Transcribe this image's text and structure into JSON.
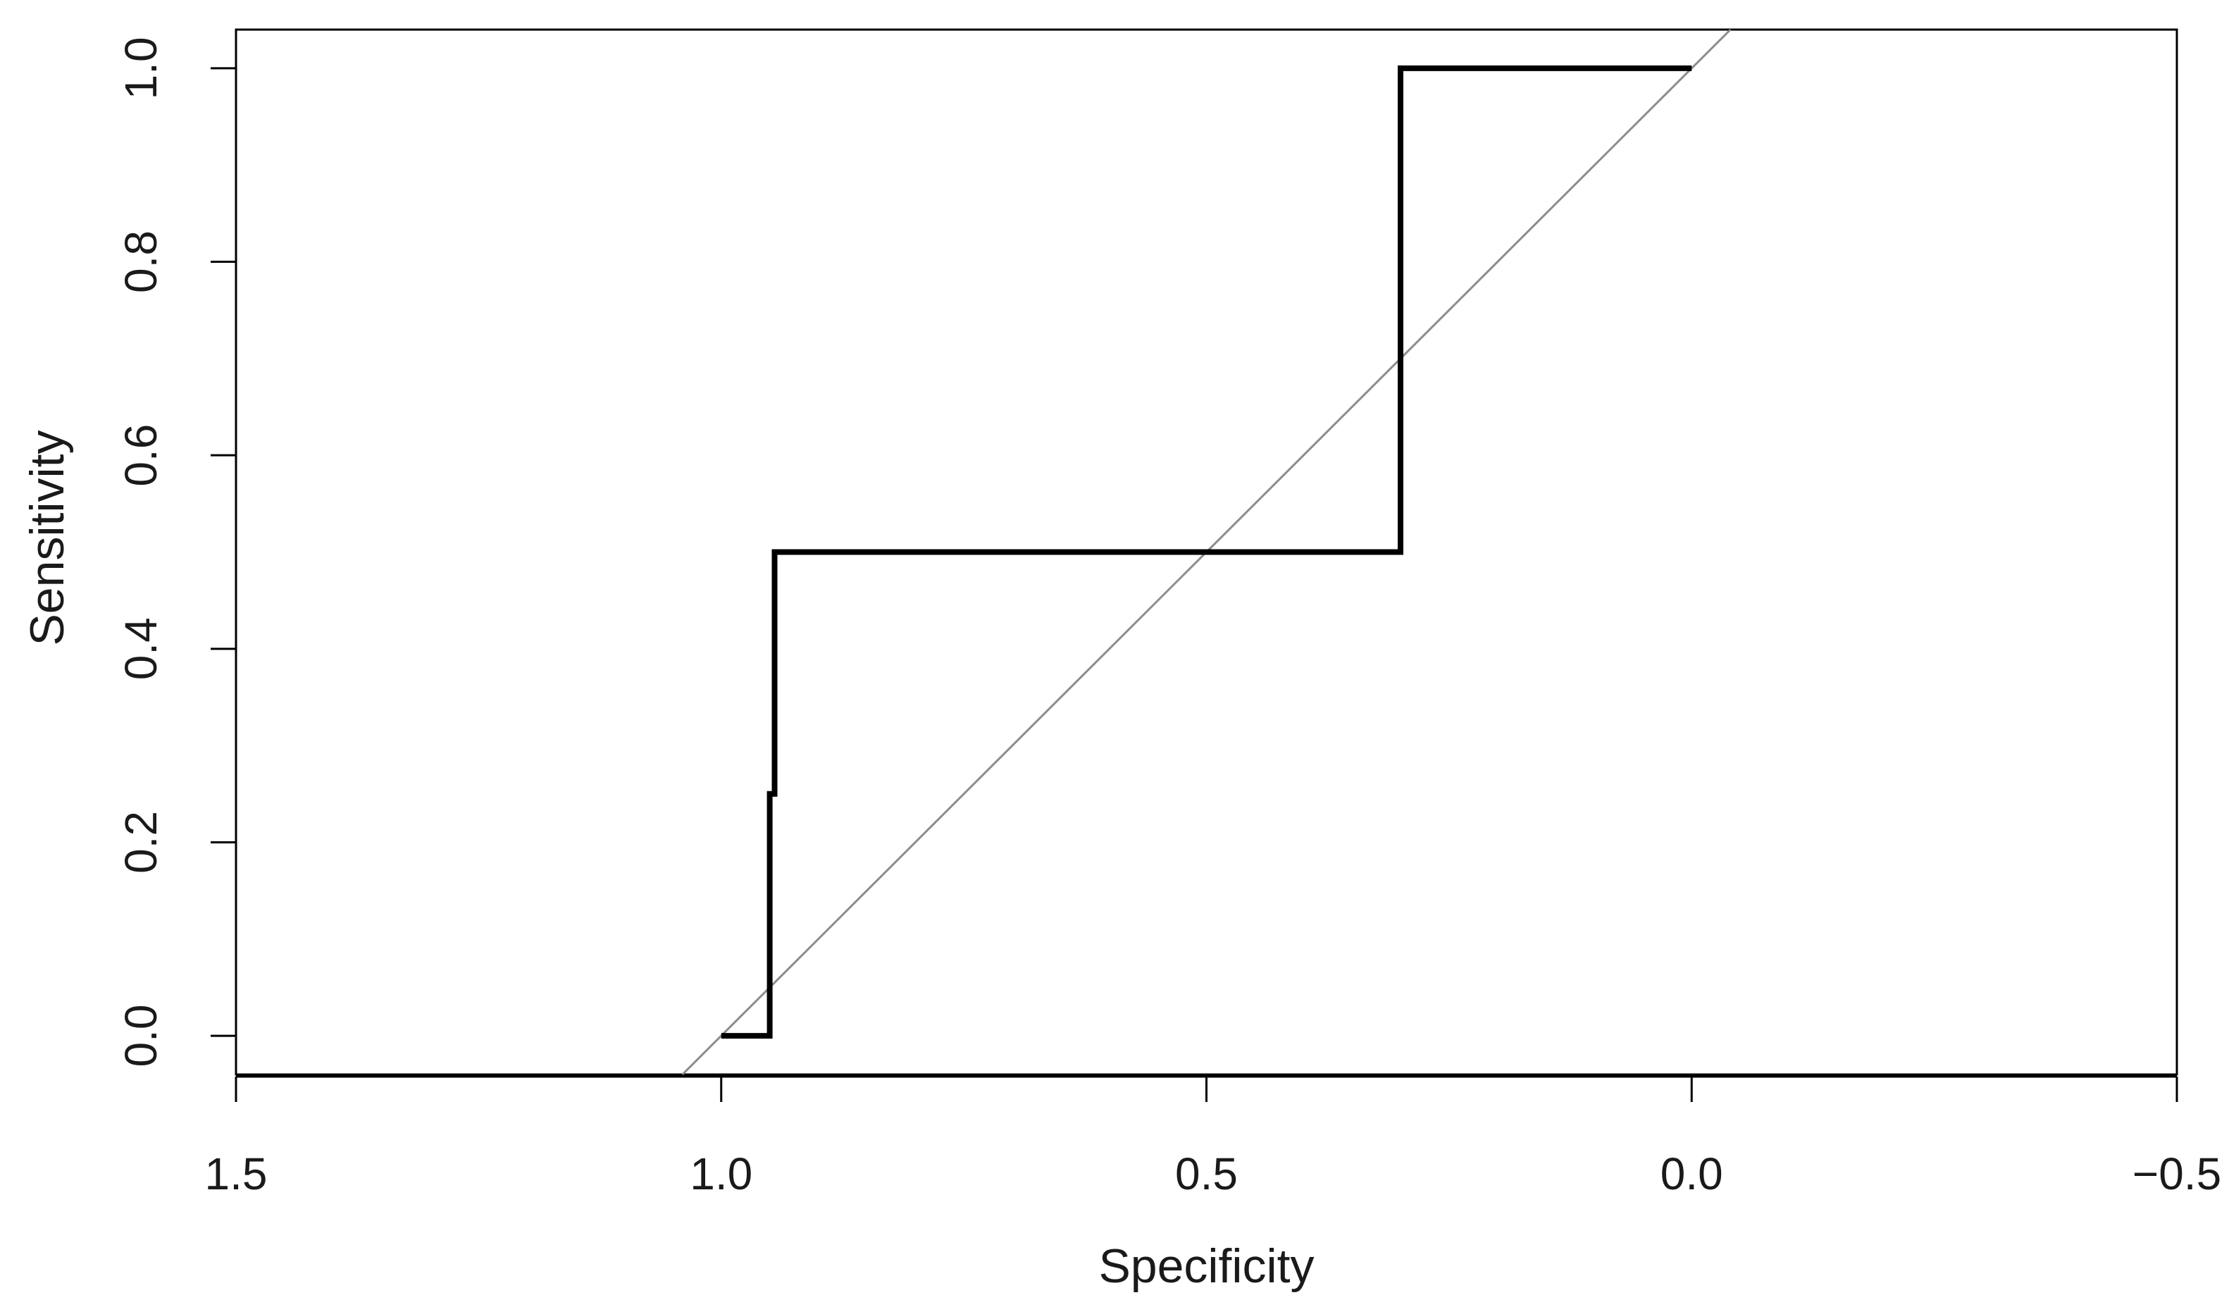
{
  "chart_data": {
    "type": "line",
    "title": "",
    "xlabel": "Specificity",
    "ylabel": "Sensitivity",
    "xlim": [
      1.5,
      -0.5
    ],
    "ylim": [
      -0.04,
      1.04
    ],
    "x_reversed": true,
    "grid": false,
    "legend": "none",
    "x_ticks": [
      {
        "value": 1.5,
        "label": "1.5"
      },
      {
        "value": 1.0,
        "label": "1.0"
      },
      {
        "value": 0.5,
        "label": "0.5"
      },
      {
        "value": 0.0,
        "label": "0.0"
      },
      {
        "value": -0.5,
        "label": "−0.5"
      }
    ],
    "y_ticks": [
      {
        "value": 0.0,
        "label": "0.0"
      },
      {
        "value": 0.2,
        "label": "0.2"
      },
      {
        "value": 0.4,
        "label": "0.4"
      },
      {
        "value": 0.6,
        "label": "0.6"
      },
      {
        "value": 0.8,
        "label": "0.8"
      },
      {
        "value": 1.0,
        "label": "1.0"
      }
    ],
    "series": [
      {
        "color": "#000000",
        "x": [
          1.0,
          0.95,
          0.95,
          0.945,
          0.945,
          0.3,
          0.3,
          0.0
        ],
        "y": [
          0.0,
          0.0,
          0.25,
          0.25,
          0.5,
          0.5,
          1.0,
          1.0
        ]
      }
    ],
    "reference_line": {
      "color": "#8c8c8c",
      "x": [
        1.04,
        -0.04
      ],
      "y": [
        -0.04,
        1.04
      ]
    }
  }
}
